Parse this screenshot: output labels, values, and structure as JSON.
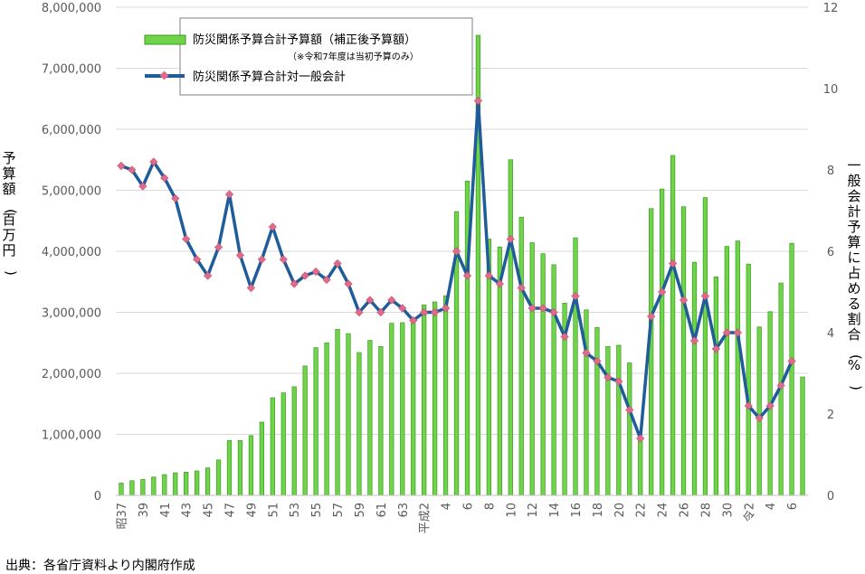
{
  "chart_data": {
    "type": "bar+line",
    "title": "",
    "left_axis": {
      "label": "予算額(百万円)",
      "ylim": [
        0,
        8000000
      ],
      "ticks": [
        "0",
        "1,000,000",
        "2,000,000",
        "3,000,000",
        "4,000,000",
        "5,000,000",
        "6,000,000",
        "7,000,000",
        "8,000,000"
      ]
    },
    "right_axis": {
      "label": "一般会計予算に占める割合(%)",
      "ylim": [
        0,
        12
      ],
      "ticks": [
        "0",
        "2",
        "4",
        "6",
        "8",
        "10",
        "12"
      ]
    },
    "x_tick_labels": [
      "昭37",
      "39",
      "41",
      "43",
      "45",
      "47",
      "49",
      "51",
      "53",
      "55",
      "57",
      "59",
      "61",
      "63",
      "平成2",
      "4",
      "6",
      "8",
      "10",
      "12",
      "14",
      "16",
      "18",
      "20",
      "22",
      "24",
      "26",
      "28",
      "30",
      "令2",
      "4",
      "6"
    ],
    "legend": {
      "bar_label": "防災関係予算合計予算額（補正後予算額）",
      "bar_note": "（※令和7年度は当初予算のみ）",
      "line_label": "防災関係予算合計対一般会計"
    },
    "series": [
      {
        "name": "防災関係予算合計予算額（補正後予算額）",
        "kind": "bar",
        "color": "#6fd44a",
        "values": [
          200000,
          240000,
          260000,
          300000,
          340000,
          370000,
          380000,
          400000,
          450000,
          580000,
          900000,
          900000,
          980000,
          1200000,
          1600000,
          1680000,
          1780000,
          2120000,
          2420000,
          2500000,
          2720000,
          2650000,
          2340000,
          2540000,
          2440000,
          2820000,
          2830000,
          2900000,
          3120000,
          3170000,
          3270000,
          4650000,
          5150000,
          7540000,
          4200000,
          4070000,
          5500000,
          4560000,
          4140000,
          3960000,
          3780000,
          3150000,
          4220000,
          3040000,
          2750000,
          2440000,
          2460000,
          2170000,
          910000,
          4700000,
          5020000,
          5570000,
          4730000,
          3820000,
          4880000,
          3580000,
          4080000,
          4170000,
          3790000,
          2760000,
          3010000,
          3480000,
          4130000,
          1940000
        ]
      },
      {
        "name": "防災関係予算合計対一般会計",
        "kind": "line",
        "color": "#1f5c99",
        "marker_color": "#e06a8a",
        "values": [
          8.1,
          8.0,
          7.6,
          8.2,
          7.8,
          7.3,
          6.3,
          5.8,
          5.4,
          6.1,
          7.4,
          5.9,
          5.1,
          5.8,
          6.6,
          5.8,
          5.2,
          5.4,
          5.5,
          5.3,
          5.7,
          5.2,
          4.5,
          4.8,
          4.5,
          4.8,
          4.6,
          4.3,
          4.5,
          4.5,
          4.6,
          6.0,
          5.4,
          9.7,
          5.4,
          5.2,
          6.3,
          5.1,
          4.6,
          4.6,
          4.5,
          3.9,
          4.9,
          3.5,
          3.3,
          2.9,
          2.8,
          2.1,
          1.4,
          4.4,
          5.0,
          5.7,
          4.8,
          3.8,
          4.9,
          3.6,
          4.0,
          4.0,
          2.2,
          1.9,
          2.2,
          2.7,
          3.3
        ]
      }
    ]
  },
  "source_text": "出典：各省庁資料より内閣府作成"
}
